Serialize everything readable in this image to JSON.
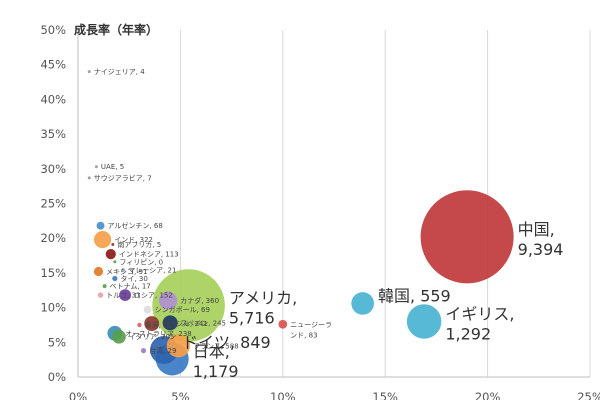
{
  "chart_data": {
    "type": "scatter",
    "ylabel": "成長率（年率）",
    "xlim": [
      0,
      25
    ],
    "ylim": [
      0,
      50
    ],
    "x_ticks": [
      "0%",
      "5%",
      "10%",
      "15%",
      "20%",
      "25%"
    ],
    "y_ticks": [
      "0%",
      "5%",
      "10%",
      "15%",
      "20%",
      "25%",
      "30%",
      "35%",
      "40%",
      "45%",
      "50%"
    ],
    "grid": "vertical",
    "points": [
      {
        "label": "中国,",
        "label2": "9,394",
        "x": 19.0,
        "y": 20.2,
        "size": 9394,
        "color": "#c0393b",
        "big": true
      },
      {
        "label": "アメリカ,",
        "label2": "5,716",
        "x": 5.4,
        "y": 10.3,
        "size": 5716,
        "color": "#a6cf5c",
        "big": true
      },
      {
        "label": "イギリス,",
        "label2": "1,292",
        "x": 16.9,
        "y": 8.0,
        "size": 1292,
        "color": "#4ab3d3",
        "big": true
      },
      {
        "label": "日本,",
        "label2": "1,179",
        "x": 4.6,
        "y": 2.6,
        "size": 1179,
        "color": "#3a7cc4",
        "big": true
      },
      {
        "label": "ドイツ, 849",
        "x": 4.2,
        "y": 3.9,
        "size": 849,
        "color": "#2f64ad",
        "big": true
      },
      {
        "label": "韓国, 559",
        "x": 13.9,
        "y": 10.6,
        "size": 559,
        "color": "#4ab3d3",
        "big": true
      },
      {
        "label": "ニュージーラ",
        "label2": "ンド, 83",
        "x": 10.0,
        "y": 7.6,
        "size": 83,
        "color": "#d9534f"
      },
      {
        "label": "ナイジェリア, 4",
        "x": 0.55,
        "y": 44.0,
        "size": 4,
        "color": "#9a9a9a"
      },
      {
        "label": "UAE, 5",
        "x": 0.9,
        "y": 30.3,
        "size": 5,
        "color": "#9a9a9a"
      },
      {
        "label": "サウジアラビア, 7",
        "x": 0.55,
        "y": 28.7,
        "size": 7,
        "color": "#9a9a9a"
      },
      {
        "label": "アルゼンチン, 68",
        "x": 1.1,
        "y": 21.8,
        "size": 68,
        "color": "#4a90c8"
      },
      {
        "label": "インド, 322",
        "x": 1.2,
        "y": 19.8,
        "size": 322,
        "color": "#f5a04a"
      },
      {
        "label": "南アフリカ, 5",
        "x": 1.7,
        "y": 19.1,
        "size": 5,
        "color": "#8e3a2f"
      },
      {
        "label": "インドネシア, 113",
        "x": 1.6,
        "y": 17.7,
        "size": 113,
        "color": "#8b1a1a"
      },
      {
        "label": "フィリピン, 0",
        "x": 1.8,
        "y": 16.6,
        "size": 0,
        "color": "#5a9e4d"
      },
      {
        "label": "マレーシア, 21",
        "x": 2.2,
        "y": 15.4,
        "size": 21,
        "color": "#aab0c8"
      },
      {
        "label": "メキシコ, 91",
        "x": 1.0,
        "y": 15.2,
        "size": 91,
        "color": "#e07b28"
      },
      {
        "label": "タイ, 30",
        "x": 1.8,
        "y": 14.2,
        "size": 30,
        "color": "#3a7cc4"
      },
      {
        "label": "ベトナム, 17",
        "x": 1.3,
        "y": 13.1,
        "size": 17,
        "color": "#5a9e4d"
      },
      {
        "label": "ロシア, 152",
        "x": 2.3,
        "y": 11.8,
        "size": 152,
        "color": "#6b3fa0"
      },
      {
        "label": "カナダ, 360",
        "x": 4.4,
        "y": 11.0,
        "size": 360,
        "color": "#b08fd0"
      },
      {
        "label": "トルコ, 31",
        "x": 1.1,
        "y": 11.8,
        "size": 31,
        "color": "#e5a3a3"
      },
      {
        "label": "シンガポール, 69",
        "x": 3.4,
        "y": 9.7,
        "size": 69,
        "color": "#dddddd"
      },
      {
        "label": "ブラジル, 241",
        "x": 3.6,
        "y": 7.7,
        "size": 241,
        "color": "#8b3a2f"
      },
      {
        "label": "スペイン, 245",
        "x": 4.5,
        "y": 7.8,
        "size": 245,
        "color": "#1f3864"
      },
      {
        "label": "香港, 20",
        "x": 3.0,
        "y": 7.5,
        "size": 20,
        "color": "#e06060"
      },
      {
        "label": "オーストラリア, 238",
        "x": 1.8,
        "y": 6.3,
        "size": 238,
        "color": "#3a8fb0"
      },
      {
        "label": "イタリア, 205",
        "x": 2.0,
        "y": 5.8,
        "size": 205,
        "color": "#5a9e4d"
      },
      {
        "label": "フランス, 588",
        "x": 4.9,
        "y": 4.5,
        "size": 588,
        "color": "#f5a04a"
      },
      {
        "label": "台湾, 29",
        "x": 3.2,
        "y": 3.8,
        "size": 29,
        "color": "#9b7fc4"
      }
    ]
  }
}
